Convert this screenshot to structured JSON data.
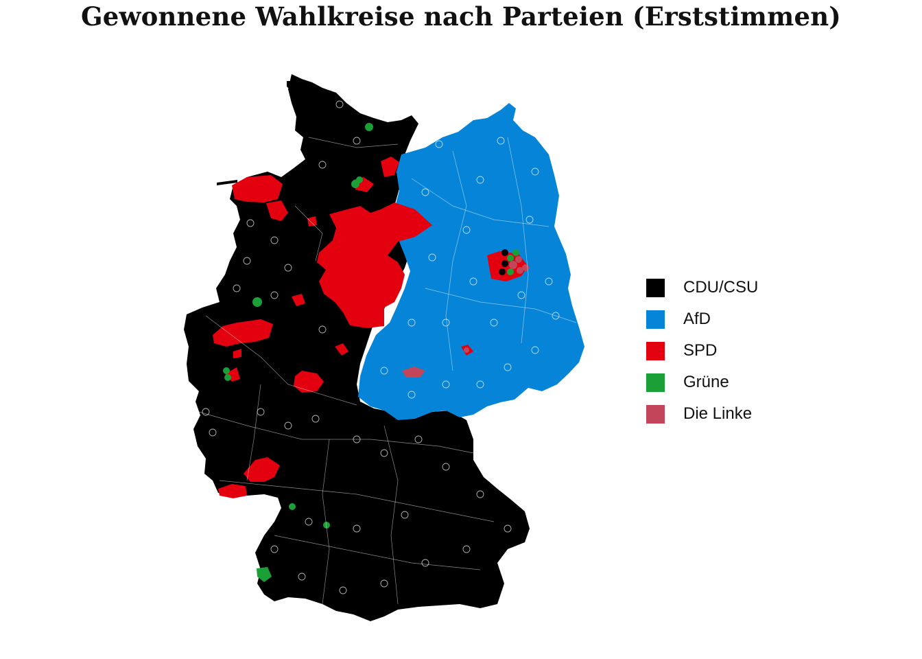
{
  "title": "Gewonnene Wahlkreise nach Parteien (Erststimmen)",
  "legend": [
    {
      "label": "CDU/CSU",
      "color": "#000000"
    },
    {
      "label": "AfD",
      "color": "#0685d8"
    },
    {
      "label": "SPD",
      "color": "#e3000f"
    },
    {
      "label": "Grüne",
      "color": "#1aa037"
    },
    {
      "label": "Die Linke",
      "color": "#c2455a"
    }
  ]
}
